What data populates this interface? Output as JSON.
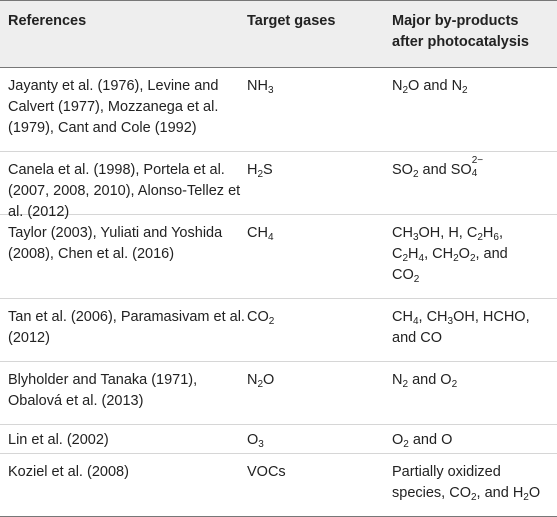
{
  "header": {
    "col1": "References",
    "col2": "Target gases",
    "col3": "Major by-products after photocatalysis"
  },
  "rows": [
    {
      "references": "Jayanty et al. (1976), Levine and Calvert (1977), Mozzanega et al. (1979), Cant and Cole (1992)",
      "gas": {
        "base": "NH",
        "sub": "3"
      },
      "products": "N2O and N2"
    },
    {
      "references": "Canela et al. (1998), Portela et al. (2007, 2008, 2010), Alonso-Tellez et al. (2012)",
      "gas": {
        "pre": "H",
        "sub": "2",
        "post": "S"
      },
      "products": "SO2 and SO4 2−"
    },
    {
      "references": "Taylor (2003), Yuliati and Yoshida (2008), Chen et al. (2016)",
      "gas": {
        "base": "CH",
        "sub": "4"
      },
      "products": "CH3OH, H, C2H6, C2H4, CH2O2, and CO2"
    },
    {
      "references": "Tan et al. (2006), Paramasivam et al. (2012)",
      "gas": {
        "base": "CO",
        "sub": "2"
      },
      "products": "CH4, CH3OH, HCHO, and CO"
    },
    {
      "references": "Blyholder and Tanaka (1971), Obalová et al. (2013)",
      "gas": {
        "pre": "N",
        "sub": "2",
        "post": "O"
      },
      "products": "N2 and O2"
    },
    {
      "references": "Lin et al. (2002)",
      "gas": {
        "base": "O",
        "sub": "3"
      },
      "products": "O2 and O"
    },
    {
      "references": "Koziel et al. (2008)",
      "gas": {
        "base": "VOCs"
      },
      "products": "Partially oxidized species, CO2, and H2O"
    }
  ],
  "colors": {
    "header_bg": "#eeeeee",
    "rule": "#777777",
    "row_rule": "#d6d6d6",
    "text": "#222222"
  }
}
